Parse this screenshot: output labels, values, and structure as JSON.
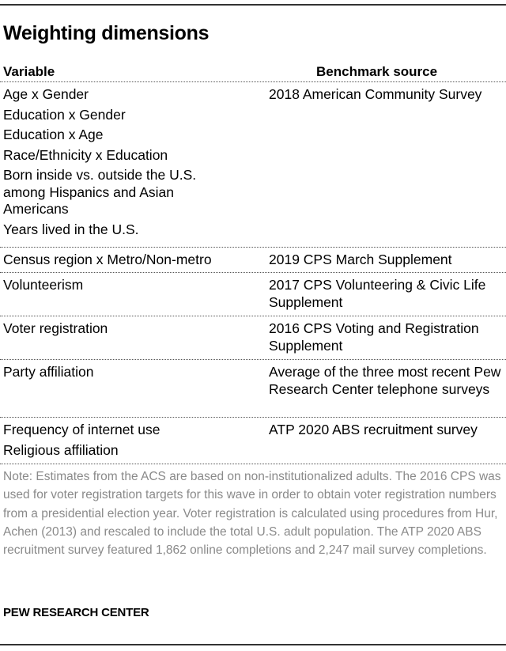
{
  "title": "Weighting dimensions",
  "columns": {
    "variable": "Variable",
    "source": "Benchmark source"
  },
  "groups": [
    {
      "variables": [
        "Age x Gender",
        "Education x Gender",
        "Education x Age",
        "Race/Ethnicity x Education",
        "Born inside vs. outside the U.S. among Hispanics and Asian Americans",
        "Years lived in the U.S."
      ],
      "source": "2018 American Community Survey"
    },
    {
      "variables": [
        "Census region x Metro/Non-metro"
      ],
      "source": "2019 CPS March Supplement"
    },
    {
      "variables": [
        "Volunteerism"
      ],
      "source": "2017 CPS Volunteering & Civic Life Supplement"
    },
    {
      "variables": [
        "Voter registration"
      ],
      "source": "2016 CPS Voting and Registration Supplement"
    },
    {
      "variables": [
        "Party affiliation"
      ],
      "source": "Average of the three most recent Pew Research Center telephone surveys"
    },
    {
      "variables": [
        "Frequency of internet use",
        "Religious affiliation"
      ],
      "source": "ATP 2020 ABS recruitment survey"
    }
  ],
  "note": "Note: Estimates from the ACS are based on non-institutionalized adults. The 2016 CPS was used for voter registration targets for this wave in order to obtain voter registration numbers from a presidential election year. Voter registration is calculated using procedures from Hur, Achen (2013) and rescaled to include the total U.S. adult population. The ATP 2020 ABS recruitment survey featured 1,862 online completions and 2,247 mail survey completions.",
  "brand": "PEW RESEARCH CENTER"
}
